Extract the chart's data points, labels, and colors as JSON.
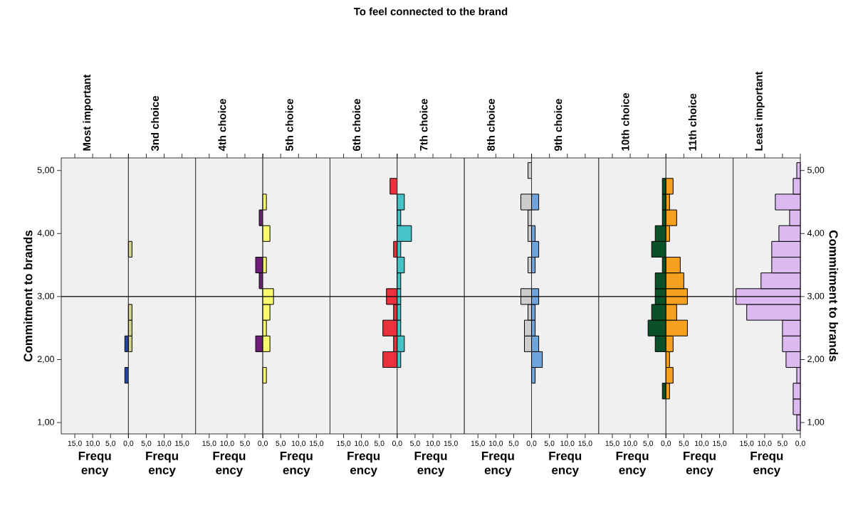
{
  "chart_data": [
    {
      "type": "other",
      "title": "To feel connected to the brand"
    },
    {
      "type": "histogram",
      "orientation": "horizontal",
      "title": "Most important",
      "xlabel": "Frequ ency",
      "ylabel": "Commitment to brands",
      "color": "#2846a0",
      "bins": [
        0.875,
        1.125,
        1.375,
        1.625,
        1.875,
        2.125,
        2.375,
        2.625,
        2.875,
        3.125,
        3.375,
        3.625,
        3.875,
        4.125,
        4.375,
        4.625,
        4.875,
        5.125
      ],
      "values": [
        0,
        0,
        0,
        1,
        0,
        1,
        0,
        0,
        0,
        0,
        0,
        0,
        0,
        0,
        0,
        0,
        0
      ],
      "xlim": [
        18.8,
        0
      ],
      "xticks": [
        {
          "value": 15,
          "label": "15,0"
        },
        {
          "value": 10,
          "label": "10,0"
        },
        {
          "value": 5,
          "label": "5,0"
        },
        {
          "value": 0,
          "label": "0,0"
        }
      ],
      "ylim": [
        0.82,
        5.2
      ],
      "yticks": [
        {
          "value": 1,
          "label": "1,00"
        },
        {
          "value": 2,
          "label": "2,00"
        },
        {
          "value": 3,
          "label": "3,00"
        },
        {
          "value": 4,
          "label": "4,00"
        },
        {
          "value": 5,
          "label": "5,00"
        }
      ],
      "ref_lines": [
        {
          "axis": "y",
          "value": 3
        }
      ]
    },
    {
      "type": "histogram",
      "orientation": "horizontal",
      "title": "3nd choice",
      "xlabel": "Frequ ency",
      "color": "#d6d28c",
      "bins": [
        0.875,
        1.125,
        1.375,
        1.625,
        1.875,
        2.125,
        2.375,
        2.625,
        2.875,
        3.125,
        3.375,
        3.625,
        3.875,
        4.125,
        4.375,
        4.625,
        4.875,
        5.125
      ],
      "values": [
        0,
        0,
        0,
        0,
        0,
        1,
        1,
        1,
        0,
        0,
        0,
        1,
        0,
        0,
        0,
        0,
        0
      ],
      "xlim": [
        0,
        18.8
      ],
      "xticks": [
        {
          "value": 0,
          "label": null
        },
        {
          "value": 5,
          "label": "5,0"
        },
        {
          "value": 10,
          "label": "10,0"
        },
        {
          "value": 15,
          "label": "15,0"
        }
      ],
      "ylim": [
        0.82,
        5.2
      ],
      "tick_labels": "x",
      "ref_lines": [
        {
          "axis": "y",
          "value": 3
        }
      ]
    },
    {
      "type": "histogram",
      "orientation": "horizontal",
      "title": "4th choice",
      "xlabel": "Frequ ency",
      "color": "#6e1e78",
      "bins": [
        0.875,
        1.125,
        1.375,
        1.625,
        1.875,
        2.125,
        2.375,
        2.625,
        2.875,
        3.125,
        3.375,
        3.625,
        3.875,
        4.125,
        4.375,
        4.625,
        4.875,
        5.125
      ],
      "values": [
        0,
        0,
        0,
        0,
        0,
        2,
        0,
        0,
        0,
        1,
        2,
        0,
        0,
        1,
        0,
        0,
        0
      ],
      "xlim": [
        18.8,
        0
      ],
      "xticks": [
        {
          "value": 15,
          "label": "15,0"
        },
        {
          "value": 10,
          "label": "10,0"
        },
        {
          "value": 5,
          "label": "5,0"
        },
        {
          "value": 0,
          "label": "0,0"
        }
      ],
      "ylim": [
        0.82,
        5.2
      ],
      "tick_labels": "x",
      "ref_lines": [
        {
          "axis": "y",
          "value": 3
        }
      ]
    },
    {
      "type": "histogram",
      "orientation": "horizontal",
      "title": "5th choice",
      "xlabel": "Frequ ency",
      "color": "#fafa6e",
      "bins": [
        0.875,
        1.125,
        1.375,
        1.625,
        1.875,
        2.125,
        2.375,
        2.625,
        2.875,
        3.125,
        3.375,
        3.625,
        3.875,
        4.125,
        4.375,
        4.625,
        4.875,
        5.125
      ],
      "values": [
        0,
        0,
        0,
        1,
        0,
        2,
        1,
        2,
        3,
        0,
        1,
        0,
        2,
        0,
        1,
        0,
        0
      ],
      "xlim": [
        0,
        18.8
      ],
      "xticks": [
        {
          "value": 0,
          "label": null
        },
        {
          "value": 5,
          "label": "5,0"
        },
        {
          "value": 10,
          "label": "10,0"
        },
        {
          "value": 15,
          "label": "15,0"
        }
      ],
      "ylim": [
        0.82,
        5.2
      ],
      "tick_labels": "x",
      "ref_lines": [
        {
          "axis": "y",
          "value": 3
        }
      ]
    },
    {
      "type": "histogram",
      "orientation": "horizontal",
      "title": "6th choice",
      "xlabel": "Frequ ency",
      "color": "#eb323c",
      "bins": [
        0.875,
        1.125,
        1.375,
        1.625,
        1.875,
        2.125,
        2.375,
        2.625,
        2.875,
        3.125,
        3.375,
        3.625,
        3.875,
        4.125,
        4.375,
        4.625,
        4.875,
        5.125
      ],
      "values": [
        0,
        0,
        0,
        0,
        4,
        1,
        4,
        1,
        3,
        0,
        0,
        1,
        0,
        0,
        0,
        2,
        0
      ],
      "xlim": [
        18.8,
        0
      ],
      "xticks": [
        {
          "value": 15,
          "label": "15,0"
        },
        {
          "value": 10,
          "label": "10,0"
        },
        {
          "value": 5,
          "label": "5,0"
        },
        {
          "value": 0,
          "label": "0,0"
        }
      ],
      "ylim": [
        0.82,
        5.2
      ],
      "tick_labels": "x",
      "ref_lines": [
        {
          "axis": "y",
          "value": 3
        }
      ]
    },
    {
      "type": "histogram",
      "orientation": "horizontal",
      "title": "7th choice",
      "xlabel": "Frequ ency",
      "color": "#46c3c8",
      "bins": [
        0.875,
        1.125,
        1.375,
        1.625,
        1.875,
        2.125,
        2.375,
        2.625,
        2.875,
        3.125,
        3.375,
        3.625,
        3.875,
        4.125,
        4.375,
        4.625,
        4.875,
        5.125
      ],
      "values": [
        0,
        0,
        0,
        0,
        1,
        2,
        1,
        1,
        1,
        1,
        2,
        1,
        4,
        1,
        2,
        0,
        0
      ],
      "xlim": [
        0,
        18.8
      ],
      "xticks": [
        {
          "value": 0,
          "label": null
        },
        {
          "value": 5,
          "label": "5,0"
        },
        {
          "value": 10,
          "label": "10,0"
        },
        {
          "value": 15,
          "label": "15,0"
        }
      ],
      "ylim": [
        0.82,
        5.2
      ],
      "tick_labels": "x",
      "ref_lines": [
        {
          "axis": "y",
          "value": 3
        }
      ]
    },
    {
      "type": "histogram",
      "orientation": "horizontal",
      "title": "8th choice",
      "xlabel": "Frequ ency",
      "color": "#cdcdcd",
      "bins": [
        0.875,
        1.125,
        1.375,
        1.625,
        1.875,
        2.125,
        2.375,
        2.625,
        2.875,
        3.125,
        3.375,
        3.625,
        3.875,
        4.125,
        4.375,
        4.625,
        4.875,
        5.125
      ],
      "values": [
        0,
        0,
        0,
        0,
        0,
        2,
        2,
        1,
        3,
        0,
        1,
        0,
        1,
        1,
        3,
        0,
        1
      ],
      "xlim": [
        18.8,
        0
      ],
      "xticks": [
        {
          "value": 15,
          "label": "15,0"
        },
        {
          "value": 10,
          "label": "10,0"
        },
        {
          "value": 5,
          "label": "5,0"
        },
        {
          "value": 0,
          "label": "0,0"
        }
      ],
      "ylim": [
        0.82,
        5.2
      ],
      "tick_labels": "x",
      "ref_lines": [
        {
          "axis": "y",
          "value": 3
        }
      ]
    },
    {
      "type": "histogram",
      "orientation": "horizontal",
      "title": "9th choice",
      "xlabel": "Frequ ency",
      "color": "#6ea5dc",
      "bins": [
        0.875,
        1.125,
        1.375,
        1.625,
        1.875,
        2.125,
        2.375,
        2.625,
        2.875,
        3.125,
        3.375,
        3.625,
        3.875,
        4.125,
        4.375,
        4.625,
        4.875,
        5.125
      ],
      "values": [
        0,
        0,
        0,
        1,
        3,
        2,
        1,
        1,
        2,
        0,
        1,
        2,
        1,
        0,
        2,
        0,
        0
      ],
      "xlim": [
        0,
        18.8
      ],
      "xticks": [
        {
          "value": 0,
          "label": null
        },
        {
          "value": 5,
          "label": "5,0"
        },
        {
          "value": 10,
          "label": "10,0"
        },
        {
          "value": 15,
          "label": "15,0"
        }
      ],
      "ylim": [
        0.82,
        5.2
      ],
      "tick_labels": "x",
      "ref_lines": [
        {
          "axis": "y",
          "value": 3
        }
      ]
    },
    {
      "type": "histogram",
      "orientation": "horizontal",
      "title": "10th choice",
      "xlabel": "Frequ ency",
      "color": "#0a5028",
      "bins": [
        0.875,
        1.125,
        1.375,
        1.625,
        1.875,
        2.125,
        2.375,
        2.625,
        2.875,
        3.125,
        3.375,
        3.625,
        3.875,
        4.125,
        4.375,
        4.625,
        4.875,
        5.125
      ],
      "values": [
        0,
        0,
        1,
        0,
        0,
        3,
        5,
        4,
        3,
        3,
        1,
        4,
        3,
        1,
        1,
        1,
        0
      ],
      "xlim": [
        18.8,
        0
      ],
      "xticks": [
        {
          "value": 15,
          "label": "15,0"
        },
        {
          "value": 10,
          "label": "10,0"
        },
        {
          "value": 5,
          "label": "5,0"
        },
        {
          "value": 0,
          "label": "0,0"
        }
      ],
      "ylim": [
        0.82,
        5.2
      ],
      "tick_labels": "x",
      "ref_lines": [
        {
          "axis": "y",
          "value": 3
        }
      ]
    },
    {
      "type": "histogram",
      "orientation": "horizontal",
      "title": "11th choice",
      "xlabel": "Frequ ency",
      "color": "#f5a01e",
      "bins": [
        0.875,
        1.125,
        1.375,
        1.625,
        1.875,
        2.125,
        2.375,
        2.625,
        2.875,
        3.125,
        3.375,
        3.625,
        3.875,
        4.125,
        4.375,
        4.625,
        4.875,
        5.125
      ],
      "values": [
        0,
        0,
        1,
        2,
        1,
        2,
        6,
        3,
        6,
        5,
        4,
        0,
        1,
        3,
        1,
        2,
        0
      ],
      "xlim": [
        0,
        18.8
      ],
      "xticks": [
        {
          "value": 0,
          "label": null
        },
        {
          "value": 5,
          "label": "5,0"
        },
        {
          "value": 10,
          "label": "10,0"
        },
        {
          "value": 15,
          "label": "15,0"
        }
      ],
      "ylim": [
        0.82,
        5.2
      ],
      "tick_labels": "x",
      "ref_lines": [
        {
          "axis": "y",
          "value": 3
        }
      ]
    },
    {
      "type": "histogram",
      "orientation": "horizontal",
      "title": "Least important",
      "xlabel": "Frequ ency",
      "y2label": "Commitment to brands",
      "color": "#dcb9f0",
      "bins": [
        0.875,
        1.125,
        1.375,
        1.625,
        1.875,
        2.125,
        2.375,
        2.625,
        2.875,
        3.125,
        3.375,
        3.625,
        3.875,
        4.125,
        4.375,
        4.625,
        4.875,
        5.125
      ],
      "values": [
        1,
        2,
        2,
        1,
        4,
        5,
        5,
        15,
        18,
        11,
        8,
        8,
        6,
        3,
        7,
        2,
        1
      ],
      "xlim": [
        18.8,
        0
      ],
      "xticks": [
        {
          "value": 15,
          "label": "15,0"
        },
        {
          "value": 10,
          "label": "10,0"
        },
        {
          "value": 5,
          "label": "5,0"
        },
        {
          "value": 0,
          "label": "0,0"
        }
      ],
      "ylim": [
        0.82,
        5.2
      ],
      "y2lim": [
        0.82,
        5.2
      ],
      "y2ticks": [
        {
          "value": 1,
          "label": "1,00"
        },
        {
          "value": 2,
          "label": "2,00"
        },
        {
          "value": 3,
          "label": "3,00"
        },
        {
          "value": 4,
          "label": "4,00"
        },
        {
          "value": 5,
          "label": "5,00"
        }
      ],
      "ref_lines": [
        {
          "axis": "y",
          "value": 3
        }
      ]
    }
  ]
}
